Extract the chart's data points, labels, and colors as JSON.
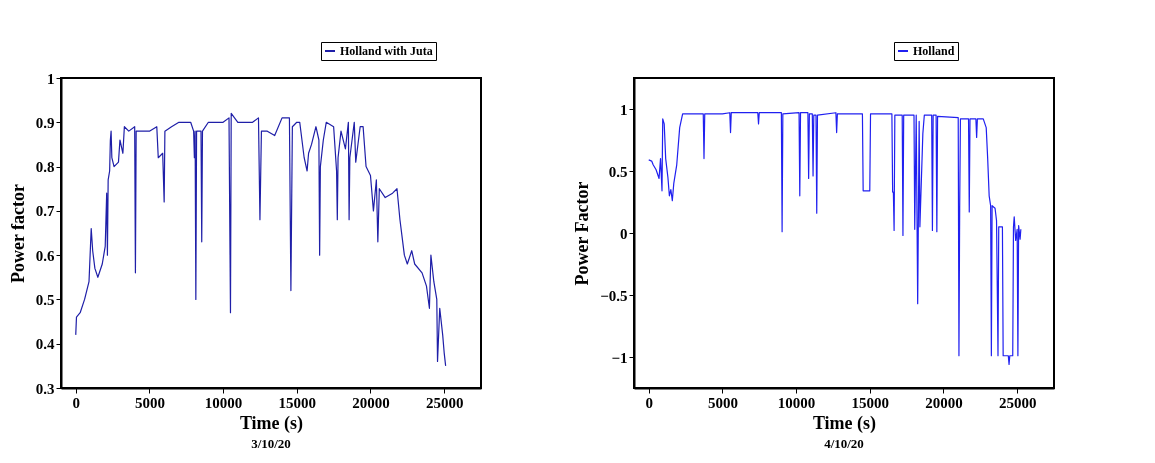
{
  "chart_data": [
    {
      "type": "line",
      "xlabel": "Time (s)",
      "ylabel": "Power factor",
      "annotations": [
        "3/10/20"
      ],
      "xlim": [
        -1000,
        27500
      ],
      "xticks": [
        0,
        5000,
        10000,
        15000,
        20000,
        25000
      ],
      "ylim": [
        0.3,
        1
      ],
      "yticks": [
        0.3,
        0.4,
        0.5,
        0.6,
        0.7,
        0.8,
        0.9,
        1
      ],
      "grid": false,
      "legend": "top right",
      "marker": "none",
      "line_style": "solid",
      "x": [
        0,
        50,
        300,
        600,
        900,
        1000,
        1050,
        1150,
        1300,
        1500,
        1800,
        2000,
        2050,
        2100,
        2150,
        2200,
        2300,
        2350,
        2400,
        2450,
        2600,
        2900,
        3000,
        3200,
        3300,
        3600,
        4000,
        4050,
        4100,
        4500,
        5000,
        5500,
        5600,
        5900,
        6000,
        6050,
        6500,
        7000,
        7500,
        7800,
        8000,
        8050,
        8100,
        8150,
        8200,
        8500,
        8550,
        8600,
        9000,
        9500,
        10000,
        10400,
        10500,
        10550,
        11000,
        11500,
        12000,
        12400,
        12500,
        12600,
        13000,
        13500,
        14000,
        14500,
        14600,
        14700,
        15000,
        15200,
        15500,
        15700,
        15800,
        16000,
        16300,
        16500,
        16550,
        16600,
        16800,
        17000,
        17500,
        17700,
        17750,
        17800,
        18000,
        18300,
        18500,
        18550,
        18600,
        18900,
        19000,
        19300,
        19500,
        19700,
        20000,
        20200,
        20400,
        20500,
        20600,
        21000,
        21500,
        21800,
        22000,
        22300,
        22500,
        22800,
        23000,
        23500,
        23800,
        24000,
        24100,
        24300,
        24500,
        24550,
        24700,
        24900,
        25000,
        25100
      ],
      "series": [
        {
          "name": "Holland with Juta",
          "color": "#1f1fa8",
          "values": [
            0.42,
            0.46,
            0.47,
            0.5,
            0.54,
            0.62,
            0.66,
            0.61,
            0.57,
            0.55,
            0.58,
            0.62,
            0.68,
            0.74,
            0.6,
            0.77,
            0.79,
            0.86,
            0.88,
            0.82,
            0.8,
            0.81,
            0.86,
            0.83,
            0.89,
            0.88,
            0.89,
            0.56,
            0.88,
            0.88,
            0.88,
            0.89,
            0.82,
            0.83,
            0.72,
            0.88,
            0.89,
            0.9,
            0.9,
            0.9,
            0.88,
            0.82,
            0.88,
            0.5,
            0.88,
            0.88,
            0.63,
            0.88,
            0.9,
            0.9,
            0.9,
            0.91,
            0.47,
            0.92,
            0.9,
            0.9,
            0.9,
            0.91,
            0.68,
            0.88,
            0.88,
            0.87,
            0.91,
            0.91,
            0.52,
            0.89,
            0.9,
            0.9,
            0.82,
            0.79,
            0.83,
            0.85,
            0.89,
            0.86,
            0.6,
            0.8,
            0.86,
            0.9,
            0.89,
            0.79,
            0.68,
            0.82,
            0.88,
            0.84,
            0.9,
            0.68,
            0.82,
            0.9,
            0.81,
            0.89,
            0.89,
            0.8,
            0.78,
            0.7,
            0.77,
            0.63,
            0.75,
            0.73,
            0.74,
            0.75,
            0.68,
            0.6,
            0.58,
            0.61,
            0.58,
            0.56,
            0.53,
            0.48,
            0.6,
            0.54,
            0.5,
            0.36,
            0.48,
            0.42,
            0.38,
            0.35
          ]
        }
      ]
    },
    {
      "type": "line",
      "xlabel": "Time (s)",
      "ylabel": "Power Factor",
      "annotations": [
        "4/10/20"
      ],
      "xlim": [
        -1000,
        27500
      ],
      "xticks": [
        0,
        5000,
        10000,
        15000,
        20000,
        25000
      ],
      "ylim": [
        -1.25,
        1.25
      ],
      "yticks": [
        -1,
        -0.5,
        0,
        0.5,
        1
      ],
      "grid": false,
      "legend": "top right",
      "marker": "none",
      "line_style": "solid",
      "x": [
        0,
        200,
        300,
        500,
        700,
        800,
        900,
        950,
        1050,
        1150,
        1300,
        1400,
        1500,
        1600,
        1700,
        1900,
        2100,
        2300,
        3000,
        3700,
        3750,
        3800,
        5000,
        5500,
        5550,
        5600,
        7400,
        7450,
        7500,
        9000,
        9050,
        9100,
        10200,
        10250,
        10300,
        10800,
        10850,
        10900,
        11100,
        11150,
        11200,
        11350,
        11400,
        11450,
        12700,
        12750,
        12800,
        14500,
        14550,
        15000,
        15050,
        16500,
        16550,
        16600,
        16650,
        16700,
        17200,
        17250,
        17300,
        18000,
        18050,
        18150,
        18250,
        18350,
        18400,
        18600,
        18700,
        19200,
        19250,
        19300,
        19500,
        19550,
        19600,
        21000,
        21050,
        21100,
        21150,
        21700,
        21750,
        21800,
        22200,
        22250,
        22300,
        22700,
        22900,
        23000,
        23100,
        23200,
        23250,
        23300,
        23500,
        23600,
        23650,
        23700,
        23750,
        24000,
        24050,
        24400,
        24450,
        24500,
        24700,
        24750,
        24800,
        24900,
        25000,
        25050,
        25100,
        25200,
        25250
      ],
      "series": [
        {
          "name": "Holland",
          "color": "#2020f0",
          "values": [
            0.59,
            0.58,
            0.55,
            0.51,
            0.44,
            0.6,
            0.34,
            0.92,
            0.88,
            0.6,
            0.45,
            0.3,
            0.35,
            0.26,
            0.4,
            0.55,
            0.85,
            0.96,
            0.96,
            0.96,
            0.6,
            0.96,
            0.96,
            0.97,
            0.81,
            0.97,
            0.97,
            0.88,
            0.97,
            0.97,
            0.01,
            0.96,
            0.97,
            0.3,
            0.97,
            0.97,
            0.44,
            0.96,
            0.96,
            0.46,
            0.95,
            0.95,
            0.16,
            0.95,
            0.97,
            0.81,
            0.96,
            0.96,
            0.34,
            0.34,
            0.96,
            0.96,
            0.33,
            0.33,
            0.02,
            0.95,
            0.95,
            -0.02,
            0.95,
            0.95,
            0.03,
            0.95,
            -0.57,
            0.9,
            0.05,
            0.8,
            0.95,
            0.95,
            0.02,
            0.95,
            0.95,
            0.01,
            0.94,
            0.93,
            -0.99,
            0.2,
            0.92,
            0.92,
            0.17,
            0.92,
            0.92,
            0.77,
            0.92,
            0.92,
            0.85,
            0.6,
            0.3,
            0.22,
            -0.99,
            0.22,
            0.2,
            0.1,
            -0.43,
            -0.99,
            0.05,
            0.05,
            -0.99,
            -0.99,
            -1.06,
            -0.99,
            -0.99,
            0.05,
            0.13,
            -0.06,
            0.03,
            -0.99,
            0.06,
            -0.05,
            0.03
          ]
        }
      ]
    }
  ]
}
